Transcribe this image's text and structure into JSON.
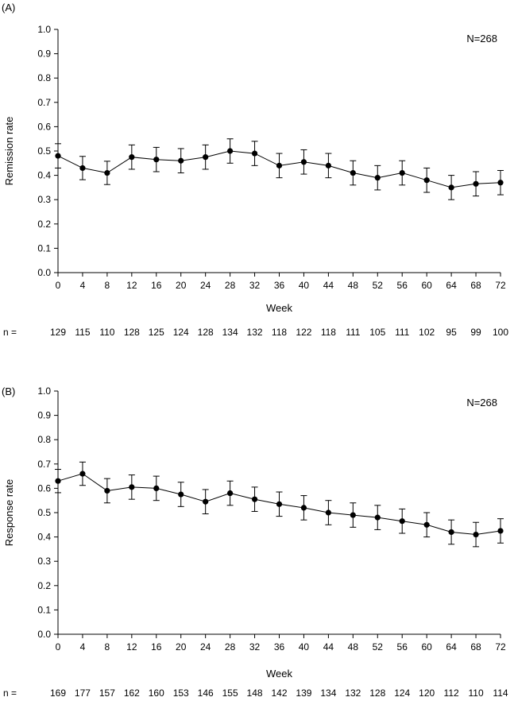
{
  "chart_data": [
    {
      "type": "line",
      "panel_label": "(A)",
      "annotation": "N=268",
      "xlabel": "Week",
      "ylabel": "Remission rate",
      "ylim": [
        0,
        1.0
      ],
      "yticks": [
        "0.0",
        "0.1",
        "0.2",
        "0.3",
        "0.4",
        "0.5",
        "0.6",
        "0.7",
        "0.8",
        "0.9",
        "1.0"
      ],
      "x": [
        "0",
        "4",
        "8",
        "12",
        "16",
        "20",
        "24",
        "28",
        "32",
        "36",
        "40",
        "44",
        "48",
        "52",
        "56",
        "60",
        "64",
        "68",
        "72"
      ],
      "series": [
        {
          "values": [
            0.48,
            0.43,
            0.41,
            0.475,
            0.465,
            0.46,
            0.475,
            0.5,
            0.49,
            0.44,
            0.455,
            0.44,
            0.41,
            0.39,
            0.41,
            0.38,
            0.35,
            0.365,
            0.37
          ],
          "error": [
            0.05,
            0.048,
            0.048,
            0.05,
            0.05,
            0.05,
            0.05,
            0.05,
            0.05,
            0.05,
            0.05,
            0.05,
            0.05,
            0.05,
            0.05,
            0.05,
            0.05,
            0.05,
            0.05
          ]
        }
      ],
      "n_label": "n =",
      "n_values": [
        "129",
        "115",
        "110",
        "128",
        "125",
        "124",
        "128",
        "134",
        "132",
        "118",
        "122",
        "118",
        "111",
        "105",
        "111",
        "102",
        "95",
        "99",
        "100"
      ]
    },
    {
      "type": "line",
      "panel_label": "(B)",
      "annotation": "N=268",
      "xlabel": "Week",
      "ylabel": "Response rate",
      "ylim": [
        0,
        1.0
      ],
      "yticks": [
        "0.0",
        "0.1",
        "0.2",
        "0.3",
        "0.4",
        "0.5",
        "0.6",
        "0.7",
        "0.8",
        "0.9",
        "1.0"
      ],
      "x": [
        "0",
        "4",
        "8",
        "12",
        "16",
        "20",
        "24",
        "28",
        "32",
        "36",
        "40",
        "44",
        "48",
        "52",
        "56",
        "60",
        "64",
        "68",
        "72"
      ],
      "series": [
        {
          "values": [
            0.63,
            0.66,
            0.59,
            0.605,
            0.6,
            0.575,
            0.545,
            0.58,
            0.555,
            0.535,
            0.52,
            0.5,
            0.49,
            0.48,
            0.465,
            0.45,
            0.42,
            0.41,
            0.425
          ],
          "error": [
            0.048,
            0.048,
            0.05,
            0.05,
            0.05,
            0.05,
            0.05,
            0.05,
            0.05,
            0.05,
            0.05,
            0.05,
            0.05,
            0.05,
            0.05,
            0.05,
            0.05,
            0.05,
            0.05
          ]
        }
      ],
      "n_label": "n =",
      "n_values": [
        "169",
        "177",
        "157",
        "162",
        "160",
        "153",
        "146",
        "155",
        "148",
        "142",
        "139",
        "134",
        "132",
        "128",
        "124",
        "120",
        "112",
        "110",
        "114"
      ]
    }
  ]
}
